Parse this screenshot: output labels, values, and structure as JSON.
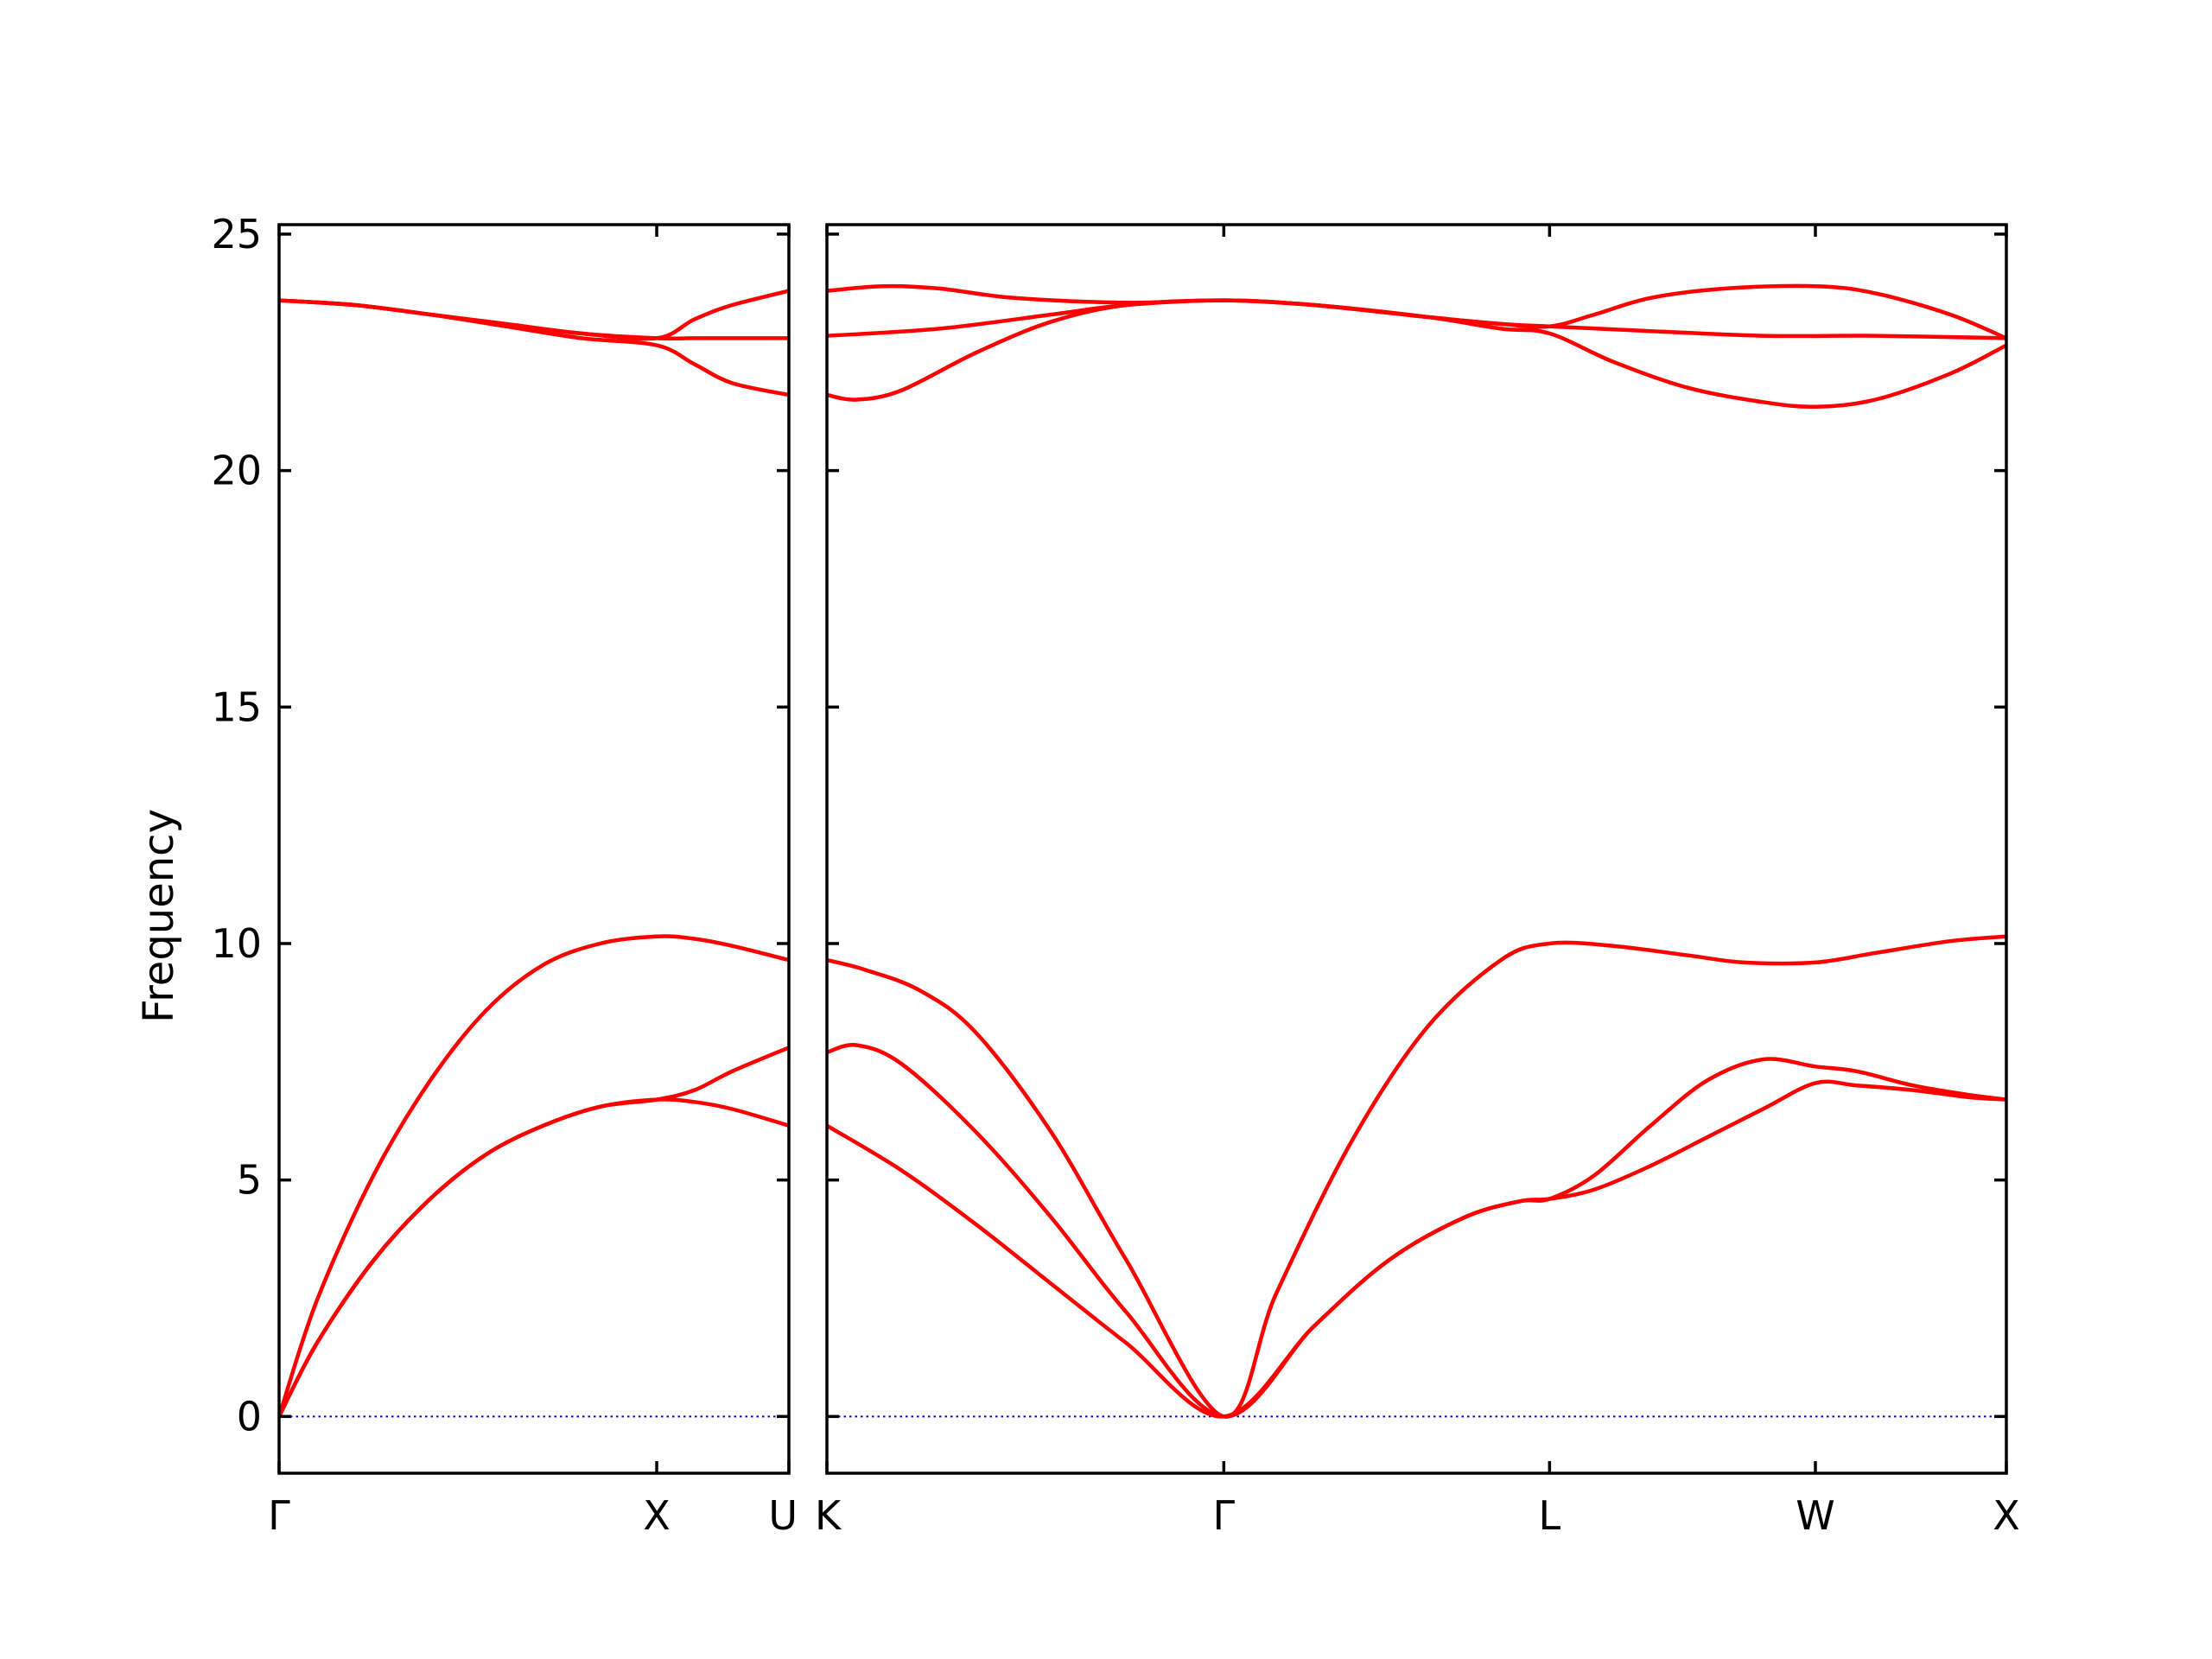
{
  "chart_data": {
    "type": "line",
    "title": "",
    "ylabel": "Frequency",
    "ylim": [
      -1.2,
      25.2
    ],
    "yticks": [
      0,
      5,
      10,
      15,
      20,
      25
    ],
    "grid": false,
    "colors": {
      "bands": "#ff0000",
      "zero_line": "#0000cc",
      "axes": "#000000"
    },
    "segments": [
      {
        "labels": [
          "Γ",
          "X",
          "U"
        ],
        "xrange": [
          0,
          1.35
        ],
        "label_x": [
          0,
          1,
          1.35
        ],
        "bands": [
          {
            "x": [
              0,
              0.1,
              0.25,
              0.4,
              0.55,
              0.7,
              0.85,
              1.0,
              1.1,
              1.2,
              1.35
            ],
            "y": [
              0,
              1.55,
              3.3,
              4.6,
              5.55,
              6.15,
              6.55,
              6.7,
              6.65,
              6.5,
              6.15
            ]
          },
          {
            "x": [
              0,
              0.1,
              0.25,
              0.4,
              0.55,
              0.7,
              0.85,
              1.0,
              1.1,
              1.2,
              1.35
            ],
            "y": [
              0,
              2.45,
              5.1,
              7.1,
              8.6,
              9.55,
              10.0,
              10.15,
              10.1,
              9.95,
              9.65
            ]
          },
          {
            "x": [
              0,
              0.1,
              0.25,
              0.4,
              0.55,
              0.7,
              0.85,
              1.0,
              1.1,
              1.2,
              1.35
            ],
            "y": [
              0,
              1.55,
              3.3,
              4.6,
              5.55,
              6.15,
              6.55,
              6.7,
              6.9,
              7.3,
              7.8
            ]
          },
          {
            "x": [
              0,
              0.2,
              0.4,
              0.6,
              0.8,
              1.0,
              1.1,
              1.2,
              1.35
            ],
            "y": [
              23.6,
              23.5,
              23.3,
              23.05,
              22.8,
              22.65,
              22.25,
              21.85,
              21.6
            ]
          },
          {
            "x": [
              0,
              0.2,
              0.4,
              0.6,
              0.8,
              1.0,
              1.1,
              1.2,
              1.35
            ],
            "y": [
              23.6,
              23.5,
              23.3,
              23.1,
              22.9,
              22.8,
              22.8,
              22.8,
              22.8
            ]
          },
          {
            "x": [
              0,
              0.2,
              0.4,
              0.6,
              0.8,
              1.0,
              1.1,
              1.2,
              1.35
            ],
            "y": [
              23.6,
              23.5,
              23.3,
              23.1,
              22.9,
              22.8,
              23.2,
              23.5,
              23.8
            ]
          }
        ]
      },
      {
        "labels": [
          "K",
          "Γ",
          "L",
          "W",
          "X"
        ],
        "xrange": [
          0,
          3.15
        ],
        "label_x": [
          0,
          1.06,
          1.93,
          2.64,
          3.15
        ],
        "bands": [
          {
            "x": [
              0,
              0.2,
              0.4,
              0.6,
              0.8,
              1.06,
              1.3,
              1.5,
              1.7,
              1.85,
              1.93,
              2.05,
              2.2,
              2.35,
              2.5,
              2.64,
              2.75,
              2.9,
              3.05,
              3.15
            ],
            "y": [
              6.15,
              5.2,
              4.05,
              2.8,
              1.55,
              0,
              1.9,
              3.3,
              4.2,
              4.55,
              4.6,
              4.8,
              5.3,
              5.9,
              6.5,
              7.05,
              7.0,
              6.9,
              6.75,
              6.7
            ]
          },
          {
            "x": [
              0,
              0.08,
              0.2,
              0.4,
              0.6,
              0.8,
              1.06,
              1.3,
              1.5,
              1.7,
              1.85,
              1.93,
              2.05,
              2.2,
              2.35,
              2.5,
              2.64,
              2.75,
              2.9,
              3.05,
              3.15
            ],
            "y": [
              7.7,
              7.85,
              7.45,
              6.0,
              4.2,
              2.2,
              0,
              1.9,
              3.3,
              4.2,
              4.55,
              4.6,
              5.1,
              6.15,
              7.1,
              7.55,
              7.4,
              7.3,
              7.0,
              6.8,
              6.7
            ]
          },
          {
            "x": [
              0,
              0.1,
              0.25,
              0.4,
              0.6,
              0.8,
              1.06,
              1.2,
              1.4,
              1.6,
              1.8,
              1.93,
              2.1,
              2.3,
              2.45,
              2.64,
              2.8,
              3.0,
              3.15
            ],
            "y": [
              9.65,
              9.45,
              9.0,
              8.1,
              6.0,
              3.3,
              0,
              2.6,
              5.8,
              8.2,
              9.65,
              10.0,
              9.95,
              9.75,
              9.6,
              9.6,
              9.8,
              10.05,
              10.15
            ]
          },
          {
            "x": [
              0,
              0.08,
              0.2,
              0.4,
              0.6,
              0.8,
              1.06,
              1.3,
              1.6,
              1.8,
              1.93,
              2.1,
              2.3,
              2.5,
              2.64,
              2.8,
              3.0,
              3.15
            ],
            "y": [
              21.6,
              21.5,
              21.7,
              22.5,
              23.15,
              23.5,
              23.6,
              23.5,
              23.25,
              23.0,
              22.9,
              22.3,
              21.75,
              21.45,
              21.35,
              21.5,
              22.05,
              22.65
            ]
          },
          {
            "x": [
              0,
              0.3,
              0.6,
              0.8,
              1.06,
              1.3,
              1.6,
              1.8,
              1.93,
              2.2,
              2.5,
              2.8,
              3.15
            ],
            "y": [
              22.85,
              23.0,
              23.3,
              23.5,
              23.6,
              23.5,
              23.25,
              23.1,
              23.05,
              22.95,
              22.85,
              22.85,
              22.8
            ]
          },
          {
            "x": [
              0,
              0.15,
              0.3,
              0.5,
              0.8,
              1.06,
              1.3,
              1.6,
              1.8,
              1.93,
              2.05,
              2.2,
              2.4,
              2.64,
              2.8,
              3.0,
              3.15
            ],
            "y": [
              23.8,
              23.9,
              23.85,
              23.65,
              23.55,
              23.6,
              23.5,
              23.25,
              23.1,
              23.05,
              23.3,
              23.65,
              23.85,
              23.9,
              23.75,
              23.3,
              22.8
            ]
          }
        ]
      }
    ]
  }
}
